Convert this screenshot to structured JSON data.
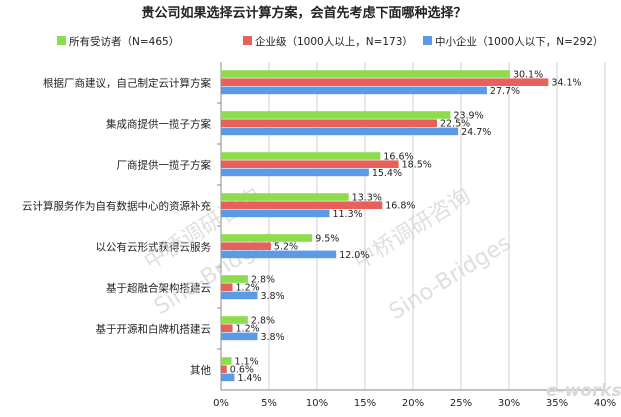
{
  "chart_data": {
    "type": "bar",
    "orientation": "horizontal",
    "title": "贵公司如果选择云计算方案，会首先考虑下面哪种选择？",
    "categories": [
      "根据厂商建议，自己制定云计算方案",
      "集成商提供一揽子方案",
      "厂商提供一揽子方案",
      "云计算服务作为自有数据中心的资源补充",
      "以公有云形式获得云服务",
      "基于超融合架构搭建云",
      "基于开源和白牌机搭建云",
      "其他"
    ],
    "series": [
      {
        "name": "所有受访者（N=465）",
        "color": "#8ddc4c",
        "values": [
          30.1,
          23.9,
          16.6,
          13.3,
          9.5,
          2.8,
          2.8,
          1.1
        ],
        "labels": [
          "30.1%",
          "23.9%",
          "16.6%",
          "13.3%",
          "9.5%",
          "2.8%",
          "2.8%",
          "1.1%"
        ]
      },
      {
        "name": "企业级（1000人以上，N=173）",
        "color": "#e8605a",
        "values": [
          34.1,
          22.5,
          18.5,
          16.8,
          5.2,
          1.2,
          1.2,
          0.6
        ],
        "labels": [
          "34.1%",
          "22.5%",
          "18.5%",
          "16.8%",
          "5.2%",
          "1.2%",
          "1.2%",
          "0.6%"
        ]
      },
      {
        "name": "中小企业（1000人以下，N=292）",
        "color": "#5b9ae6",
        "values": [
          27.7,
          24.7,
          15.4,
          11.3,
          12.0,
          3.8,
          3.8,
          1.4
        ],
        "labels": [
          "27.7%",
          "24.7%",
          "15.4%",
          "11.3%",
          "12.0%",
          "3.8%",
          "3.8%",
          "1.4%"
        ]
      }
    ],
    "xlim": [
      0,
      40
    ],
    "xticks": [
      "0%",
      "5%",
      "10%",
      "15%",
      "20%",
      "25%",
      "30%",
      "35%",
      "40%"
    ],
    "grid": true,
    "legend_position": "top"
  },
  "watermark": {
    "text_cn": "中桥调研咨询",
    "text_en": "Sino-Bridges",
    "logo": "e-works"
  }
}
